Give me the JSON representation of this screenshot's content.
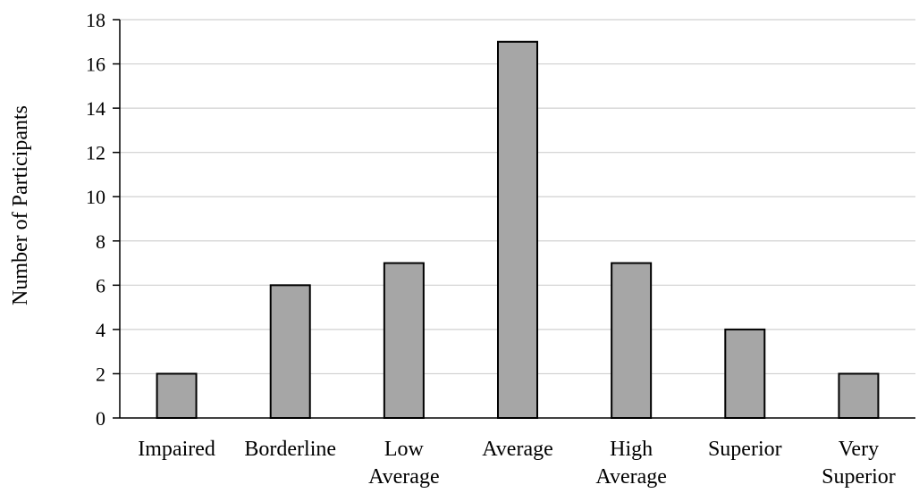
{
  "chart_data": {
    "type": "bar",
    "categories": [
      "Impaired",
      "Borderline",
      "Low Average",
      "Average",
      "High Average",
      "Superior",
      "Very Superior"
    ],
    "category_lines": [
      [
        "Impaired"
      ],
      [
        "Borderline"
      ],
      [
        "Low",
        "Average"
      ],
      [
        "Average"
      ],
      [
        "High",
        "Average"
      ],
      [
        "Superior"
      ],
      [
        "Very",
        "Superior"
      ]
    ],
    "values": [
      2,
      6,
      7,
      17,
      7,
      4,
      2
    ],
    "ylabel": "Number of Participants",
    "xlabel": "",
    "title": "",
    "ylim": [
      0,
      18
    ],
    "yticks": [
      0,
      2,
      4,
      6,
      8,
      10,
      12,
      14,
      16,
      18
    ],
    "grid": true,
    "colors": {
      "bar_fill": "#a6a6a6",
      "bar_stroke": "#000000",
      "grid": "#d0d0d0",
      "axis": "#000000"
    }
  }
}
